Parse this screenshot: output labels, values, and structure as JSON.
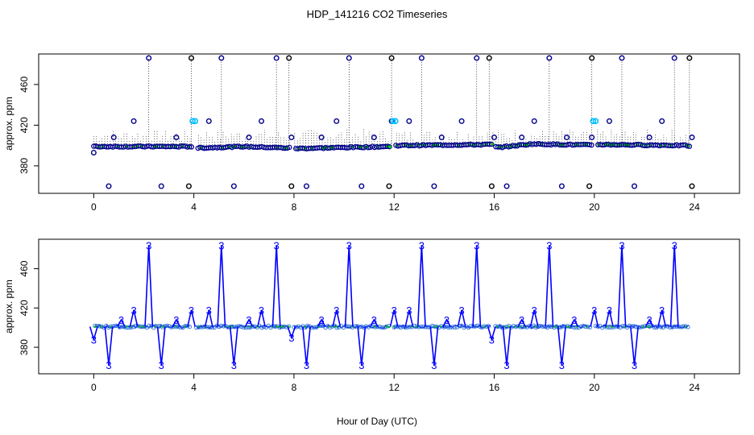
{
  "title": "HDP_141216  CO2 Timeseries",
  "xlabel": "Hour of Day (UTC)",
  "colors": {
    "line_blue": "#0000ff",
    "dark_blue_point": "#00008b",
    "cyan_point": "#00bfff",
    "green_point": "#00cc00",
    "black_point": "#000000",
    "stem": "#000000"
  },
  "chart_data": [
    {
      "type": "scatter",
      "panel": "top",
      "ylabel": "approx. ppm",
      "xlim": [
        -2.2,
        25.8
      ],
      "ylim": [
        353,
        490
      ],
      "xticks": [
        "0",
        "4",
        "8",
        "12",
        "16",
        "20",
        "24"
      ],
      "xtick_values": [
        0,
        4,
        8,
        12,
        16,
        20,
        24
      ],
      "yticks": [
        "380",
        "420",
        "460"
      ],
      "ytick_values": [
        380,
        420,
        460
      ],
      "gaps": [
        [
          3.95,
          4.1
        ],
        [
          7.85,
          8.0
        ],
        [
          11.9,
          12.0
        ],
        [
          15.95,
          16.05
        ],
        [
          19.9,
          20.1
        ]
      ],
      "baseline": [
        [
          0,
          399
        ],
        [
          3.9,
          399
        ],
        [
          4.1,
          397.5
        ],
        [
          6.0,
          399
        ],
        [
          7.8,
          397.5
        ],
        [
          7.9,
          399
        ],
        [
          8.0,
          397
        ],
        [
          11.8,
          399
        ],
        [
          12.0,
          400
        ],
        [
          15.9,
          401
        ],
        [
          16.1,
          398
        ],
        [
          17.5,
          401.5
        ],
        [
          19.8,
          400.5
        ],
        [
          20.1,
          401
        ],
        [
          23.8,
          400
        ]
      ],
      "spikes_high": [
        2.2,
        3.9,
        5.1,
        7.3,
        7.8,
        10.2,
        11.9,
        13.1,
        15.3,
        15.8,
        18.2,
        19.9,
        21.1,
        23.2,
        23.8
      ],
      "spikes_low": [
        0.6,
        2.7,
        3.8,
        5.6,
        7.9,
        8.5,
        10.7,
        11.8,
        13.6,
        15.9,
        16.5,
        18.7,
        19.8,
        21.6,
        23.9
      ],
      "mid_level": [
        0.8,
        1.6,
        3.3,
        4.6,
        6.2,
        6.7,
        7.9,
        9.1,
        9.7,
        11.2,
        11.9,
        12.6,
        13.9,
        14.7,
        16.0,
        17.1,
        17.6,
        18.9,
        19.9,
        20.6,
        22.2,
        22.7,
        23.9
      ],
      "mid_values": [
        408,
        424,
        408,
        424,
        408,
        424,
        408,
        408,
        424,
        408,
        424,
        424,
        408,
        424,
        408,
        408,
        424,
        408,
        408,
        424,
        408,
        424,
        408
      ],
      "cyan_points": [
        [
          3.95,
          424
        ],
        [
          4.05,
          424
        ],
        [
          11.95,
          424
        ],
        [
          12.05,
          424
        ],
        [
          19.95,
          424
        ],
        [
          20.05,
          424
        ]
      ]
    },
    {
      "type": "line",
      "panel": "bottom",
      "ylabel": "approx. ppm",
      "xlim": [
        -2.2,
        25.8
      ],
      "ylim": [
        353,
        490
      ],
      "xticks": [
        "0",
        "4",
        "8",
        "12",
        "16",
        "20",
        "24"
      ],
      "xtick_values": [
        0,
        4,
        8,
        12,
        16,
        20,
        24
      ],
      "yticks": [
        "380",
        "420",
        "460"
      ],
      "ytick_values": [
        380,
        420,
        460
      ],
      "marker_label": "3",
      "high_spikes": [
        2.2,
        5.1,
        7.3,
        10.2,
        13.1,
        15.3,
        18.2,
        21.1,
        23.2
      ],
      "low_spikes": [
        0.6,
        2.7,
        5.6,
        8.5,
        10.7,
        13.6,
        16.5,
        18.7,
        21.6
      ],
      "mid_spikes": [
        [
          0.0,
          388
        ],
        [
          1.1,
          408
        ],
        [
          1.6,
          418
        ],
        [
          3.3,
          408
        ],
        [
          3.9,
          418
        ],
        [
          4.6,
          418
        ],
        [
          6.2,
          408
        ],
        [
          6.7,
          418
        ],
        [
          7.9,
          390
        ],
        [
          9.1,
          408
        ],
        [
          9.7,
          418
        ],
        [
          11.2,
          408
        ],
        [
          12.0,
          418
        ],
        [
          12.6,
          418
        ],
        [
          14.1,
          408
        ],
        [
          14.7,
          418
        ],
        [
          15.9,
          388
        ],
        [
          17.1,
          408
        ],
        [
          17.6,
          418
        ],
        [
          19.2,
          408
        ],
        [
          20.0,
          418
        ],
        [
          20.6,
          418
        ],
        [
          22.2,
          408
        ],
        [
          22.7,
          418
        ]
      ]
    }
  ]
}
